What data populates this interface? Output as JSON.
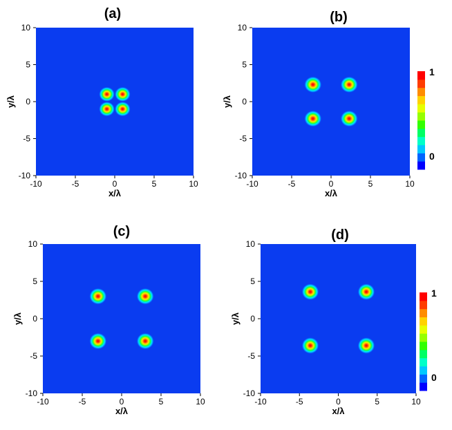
{
  "chart_data": [
    {
      "type": "heatmap",
      "title": "(a)",
      "xlabel": "x/λ",
      "ylabel": "y/λ",
      "xlim": [
        -10,
        10
      ],
      "ylim": [
        -10,
        10
      ],
      "xticks": [
        "-10",
        "-5",
        "0",
        "5",
        "10"
      ],
      "yticks": [
        "10",
        "5",
        "0",
        "-5",
        "-10"
      ],
      "peaks": [
        [
          -1,
          1
        ],
        [
          1,
          1
        ],
        [
          -1,
          -1
        ],
        [
          1,
          -1
        ]
      ],
      "spot_radius": 1.0,
      "value_range": [
        0,
        1
      ],
      "background_color": "#0a3cf0"
    },
    {
      "type": "heatmap",
      "title": "(b)",
      "xlabel": "x/λ",
      "ylabel": "y/λ",
      "xlim": [
        -10,
        10
      ],
      "ylim": [
        -10,
        10
      ],
      "xticks": [
        "-10",
        "-5",
        "0",
        "5",
        "10"
      ],
      "yticks": [
        "10",
        "5",
        "0",
        "-5",
        "-10"
      ],
      "peaks": [
        [
          -2.3,
          2.3
        ],
        [
          2.3,
          2.3
        ],
        [
          -2.3,
          -2.3
        ],
        [
          2.3,
          -2.3
        ]
      ],
      "spot_radius": 1.1,
      "value_range": [
        0,
        1
      ],
      "background_color": "#0a3cf0",
      "colorbar": {
        "max_label": "1",
        "min_label": "0"
      }
    },
    {
      "type": "heatmap",
      "title": "(c)",
      "xlabel": "x/λ",
      "ylabel": "y/λ",
      "xlim": [
        -10,
        10
      ],
      "ylim": [
        -10,
        10
      ],
      "xticks": [
        "-10",
        "-5",
        "0",
        "5",
        "10"
      ],
      "yticks": [
        "10",
        "5",
        "0",
        "-5",
        "-10"
      ],
      "peaks": [
        [
          -3,
          3
        ],
        [
          3,
          3
        ],
        [
          -3,
          -3
        ],
        [
          3,
          -3
        ]
      ],
      "spot_radius": 1.1,
      "value_range": [
        0,
        1
      ],
      "background_color": "#0a3cf0"
    },
    {
      "type": "heatmap",
      "title": "(d)",
      "xlabel": "x/λ",
      "ylabel": "y/λ",
      "xlim": [
        -10,
        10
      ],
      "ylim": [
        -10,
        10
      ],
      "xticks": [
        "-10",
        "-5",
        "0",
        "5",
        "10"
      ],
      "yticks": [
        "10",
        "5",
        "0",
        "-5",
        "-10"
      ],
      "peaks": [
        [
          -3.6,
          3.6
        ],
        [
          3.6,
          3.6
        ],
        [
          -3.6,
          -3.6
        ],
        [
          3.6,
          -3.6
        ]
      ],
      "spot_radius": 1.1,
      "value_range": [
        0,
        1
      ],
      "background_color": "#0a3cf0",
      "colorbar": {
        "max_label": "1",
        "min_label": "0"
      }
    }
  ],
  "colormap": [
    "#0000ff",
    "#0064ff",
    "#00c8ff",
    "#00ffc8",
    "#00ff64",
    "#32ff00",
    "#96ff00",
    "#e6ff00",
    "#ffd200",
    "#ff8c00",
    "#ff3c00",
    "#ff0000"
  ]
}
